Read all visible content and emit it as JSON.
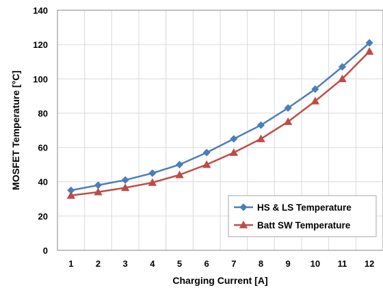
{
  "chart_data": {
    "type": "line",
    "xlabel": "Charging Current [A]",
    "ylabel": "MOSFET Temperature [°C]",
    "x": [
      1,
      2,
      3,
      4,
      5,
      6,
      7,
      8,
      9,
      10,
      11,
      12
    ],
    "xlim": [
      0.5,
      12.5
    ],
    "ylim": [
      0,
      140
    ],
    "yticks": [
      0,
      20,
      40,
      60,
      80,
      100,
      120,
      140
    ],
    "grid": "horizontal and vertical",
    "legend_position": "bottom-right",
    "series": [
      {
        "name": "HS & LS Temperature",
        "color": "#4a7ebb",
        "marker": "diamond",
        "values": [
          35,
          38,
          41,
          45,
          50,
          57,
          65,
          73,
          83,
          94,
          107,
          121
        ]
      },
      {
        "name": "Batt SW Temperature",
        "color": "#be4b48",
        "marker": "triangle",
        "values": [
          32,
          34,
          36.5,
          39.5,
          44,
          50,
          57,
          65,
          75,
          87,
          100,
          116
        ]
      }
    ]
  }
}
